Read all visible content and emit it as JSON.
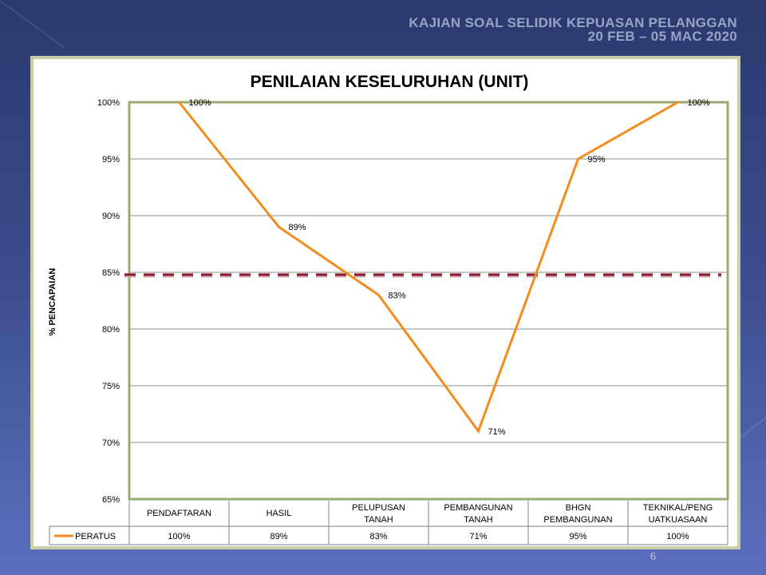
{
  "header": {
    "line1": "KAJIAN SOAL SELIDIK KEPUASAN PELANGGAN",
    "line2": "20 FEB – 05 MAC 2020"
  },
  "page_number": "6",
  "colors": {
    "series": "#f48b1f",
    "target_line": "#8b1a2a",
    "plot_border": "#9aaa74",
    "panel_border": "#c6d0a4"
  },
  "chart_data": {
    "type": "line",
    "title": "PENILAIAN KESELURUHAN (UNIT)",
    "ylabel": "% PENCAPAIAN",
    "xlabel": "",
    "ylim": [
      65,
      100
    ],
    "yticks": [
      "65%",
      "70%",
      "75%",
      "80%",
      "85%",
      "90%",
      "95%",
      "100%"
    ],
    "grid": true,
    "categories": [
      [
        "PENDAFTARAN"
      ],
      [
        "HASIL"
      ],
      [
        "PELUPUSAN",
        "TANAH"
      ],
      [
        "PEMBANGUNAN",
        "TANAH"
      ],
      [
        "BHGN",
        "PEMBANGUNAN"
      ],
      [
        "TEKNIKAL/PENG",
        "UATKUASAAN"
      ]
    ],
    "series": [
      {
        "name": "PERATUS",
        "values": [
          100,
          89,
          83,
          71,
          95,
          100
        ],
        "labels": [
          "100%",
          "89%",
          "83%",
          "71%",
          "95%",
          "100%"
        ]
      }
    ],
    "reference_line": {
      "value": 84.8,
      "style": "dashed"
    },
    "data_table": true
  }
}
